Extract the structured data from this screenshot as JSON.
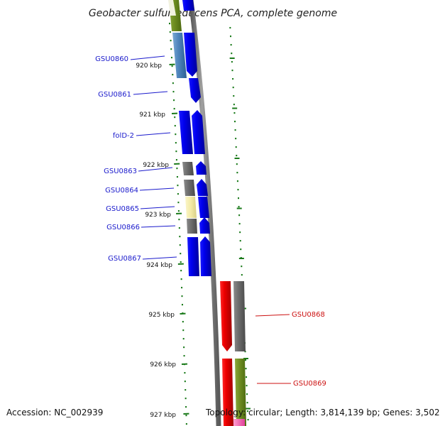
{
  "title": "Geobacter sulfurreducens PCA, complete genome",
  "footer": {
    "accession": "Accession: NC_002939",
    "summary": "Topology: circular; Length: 3,814,139 bp; Genes: 3,502"
  },
  "colors": {
    "forward_cds": "#0000ee",
    "reverse_cds": "#ee0000",
    "backbone": "#808080",
    "tick": "#1a7a1a",
    "label_forward": "#1a1acc",
    "label_reverse": "#cc1111"
  },
  "kbp_ticks": [
    {
      "label": "920 kbp",
      "kbp": 920
    },
    {
      "label": "921 kbp",
      "kbp": 921
    },
    {
      "label": "922 kbp",
      "kbp": 922
    },
    {
      "label": "923 kbp",
      "kbp": 923
    },
    {
      "label": "924 kbp",
      "kbp": 924
    },
    {
      "label": "925 kbp",
      "kbp": 925
    },
    {
      "label": "926 kbp",
      "kbp": 926
    },
    {
      "label": "927 kbp",
      "kbp": 927
    }
  ],
  "gene_labels": [
    {
      "name": "GSU0860",
      "strand": "forward"
    },
    {
      "name": "GSU0861",
      "strand": "forward"
    },
    {
      "name": "folD-2",
      "strand": "forward"
    },
    {
      "name": "GSU0863",
      "strand": "forward"
    },
    {
      "name": "GSU0864",
      "strand": "forward"
    },
    {
      "name": "GSU0865",
      "strand": "forward"
    },
    {
      "name": "GSU0866",
      "strand": "forward"
    },
    {
      "name": "GSU0867",
      "strand": "forward"
    },
    {
      "name": "GSU0868",
      "strand": "reverse"
    },
    {
      "name": "GSU0869",
      "strand": "reverse"
    }
  ]
}
